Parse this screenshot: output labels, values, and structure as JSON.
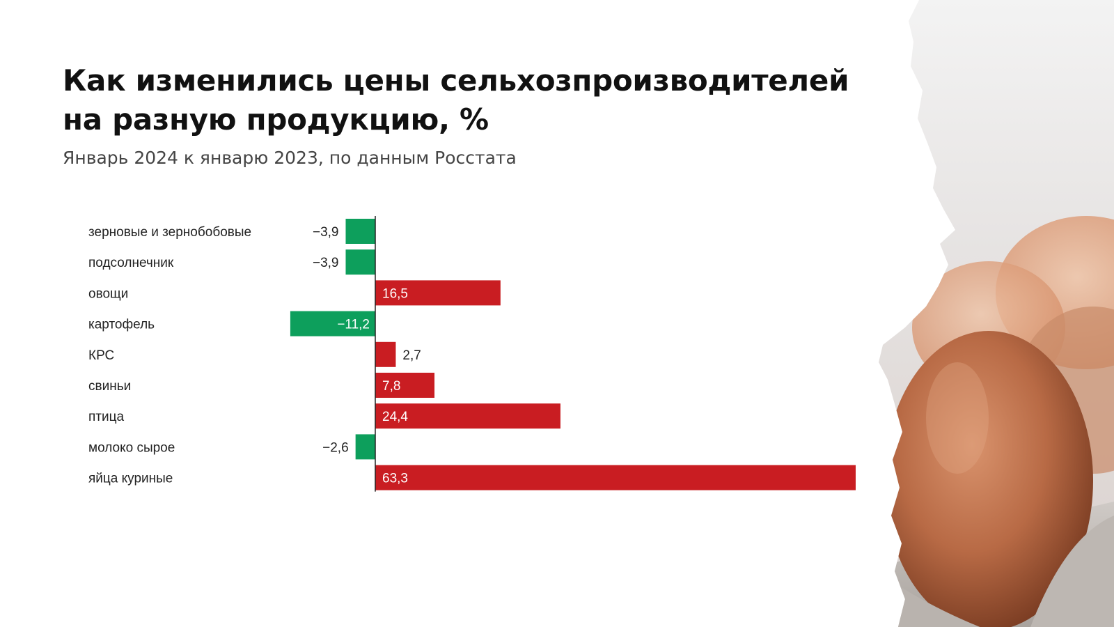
{
  "title_line1": "Как изменились цены сельхозпроизводителей",
  "title_line2": "на разную продукцию, %",
  "subtitle": "Январь 2024 к январю 2023, по данным Росстата",
  "colors": {
    "positive": "#c91d22",
    "negative": "#0d9f5c",
    "axis": "#222222",
    "label_inside": "#ffffff",
    "label_outside": "#222222"
  },
  "chart_data": {
    "type": "bar",
    "orientation": "horizontal",
    "categories": [
      "зерновые и зернобобовые",
      "подсолнечник",
      "овощи",
      "картофель",
      "КРС",
      "свиньи",
      "птица",
      "молоко сырое",
      "яйца куриные"
    ],
    "values": [
      -3.9,
      -3.9,
      16.5,
      -11.2,
      2.7,
      7.8,
      24.4,
      -2.6,
      63.3
    ],
    "value_labels": [
      "−3,9",
      "−3,9",
      "16,5",
      "−11,2",
      "2,7",
      "7,8",
      "24,4",
      "−2,6",
      "63,3"
    ],
    "xlim": [
      -11.2,
      63.3
    ],
    "grid": false,
    "legend": "none"
  }
}
